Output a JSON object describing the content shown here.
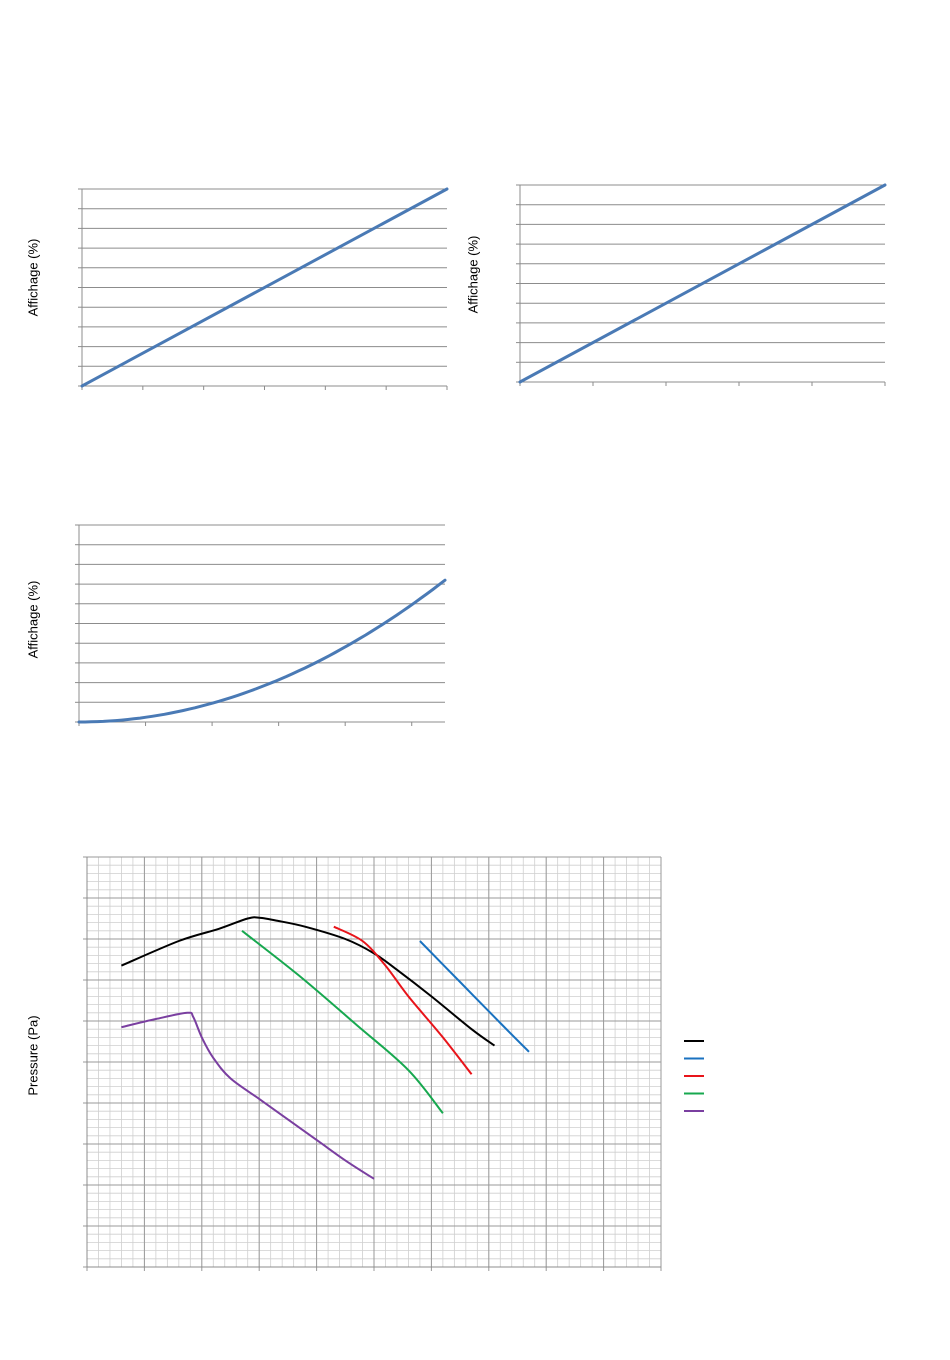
{
  "chart_data": [
    {
      "type": "line",
      "ylabel": "Affichage (%)",
      "grid": true,
      "series": [
        {
          "color": "#4a7ab5",
          "shape": "linear",
          "x": [
            0,
            1
          ],
          "y": [
            0,
            1
          ]
        }
      ]
    },
    {
      "type": "line",
      "ylabel": "Affichage (%)",
      "grid": true,
      "series": [
        {
          "color": "#4a7ab5",
          "shape": "linear",
          "x": [
            0,
            1
          ],
          "y": [
            0,
            1
          ]
        }
      ]
    },
    {
      "type": "line",
      "ylabel": "Affichage (%)",
      "grid": true,
      "series": [
        {
          "color": "#4a7ab5",
          "shape": "quadratic",
          "x": [
            0,
            0.45,
            0.6,
            0.8,
            1.0
          ],
          "y": [
            0,
            0.15,
            0.28,
            0.5,
            0.72
          ]
        }
      ]
    },
    {
      "type": "line",
      "ylabel": "Pressure (Pa)",
      "grid": true,
      "legend": "right",
      "series": [
        {
          "color": "#000000",
          "x": [
            0.6,
            1.6,
            2.3,
            2.8,
            3.0,
            3.3,
            3.8,
            4.5,
            5.0,
            5.4,
            6.0,
            6.7,
            7.1
          ],
          "y": [
            7.35,
            7.95,
            8.25,
            8.5,
            8.52,
            8.45,
            8.3,
            8.0,
            7.65,
            7.25,
            6.6,
            5.8,
            5.4
          ]
        },
        {
          "color": "#1a72c0",
          "x": [
            5.8,
            6.5,
            7.2,
            7.7
          ],
          "y": [
            7.95,
            6.95,
            5.95,
            5.25
          ]
        },
        {
          "color": "#e8141a",
          "x": [
            4.3,
            4.8,
            5.2,
            5.6,
            6.2,
            6.7
          ],
          "y": [
            8.3,
            7.95,
            7.35,
            6.6,
            5.6,
            4.7
          ]
        },
        {
          "color": "#17a84f",
          "x": [
            2.7,
            3.7,
            4.7,
            5.6,
            6.2
          ],
          "y": [
            8.2,
            7.1,
            5.9,
            4.8,
            3.75
          ]
        },
        {
          "color": "#7a3fa0",
          "x": [
            0.6,
            1.2,
            1.75,
            1.85,
            2.0,
            2.2,
            2.5,
            3.0,
            3.5,
            4.0,
            4.5,
            5.0
          ],
          "y": [
            5.85,
            6.05,
            6.2,
            6.1,
            5.6,
            5.1,
            4.6,
            4.1,
            3.6,
            3.1,
            2.6,
            2.15
          ]
        }
      ]
    }
  ]
}
